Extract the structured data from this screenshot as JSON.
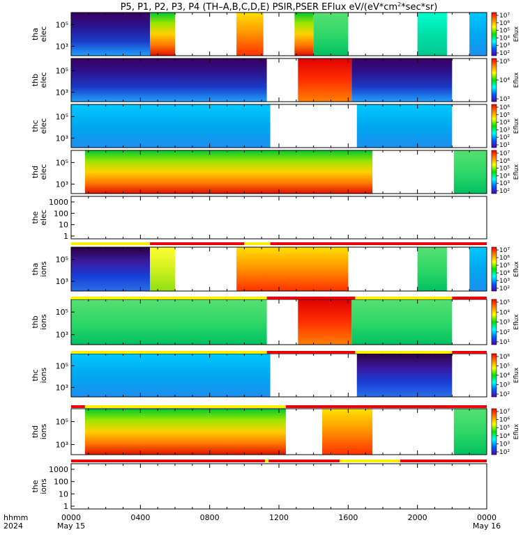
{
  "title": "P5, P1, P2, P3, P4 (TH–A,B,C,D,E) PSIR,PSER EFlux eV/(eV*cm",
  "title_sup": "2",
  "title_tail": "*sec*sr)",
  "x_axis": {
    "row1_label": "hhmm",
    "row2_label": "2024",
    "ticks": [
      "0000",
      "0400",
      "0800",
      "1200",
      "1600",
      "2000",
      "0000"
    ],
    "dates": [
      "May 15",
      "May 16"
    ],
    "range_hours": [
      0,
      24
    ]
  },
  "colors": {
    "ion_flag_red": "#e8000b",
    "ion_flag_yellow": "#ffee00",
    "background": "#ffffff"
  },
  "chart_data": {
    "type": "heatmap",
    "colorbar_label": "Eflux",
    "panels": [
      {
        "probe": "tha",
        "species": "elec",
        "yscale": "log",
        "yticks": [
          "10⁵",
          "10³"
        ],
        "colorbar_ticks": [
          "10⁷",
          "10⁶",
          "10⁵",
          "10⁴",
          "10³",
          "10²"
        ],
        "data_intervals_hours": [
          [
            0.0,
            4.55
          ],
          [
            4.55,
            6.0
          ],
          [
            9.55,
            11.1
          ],
          [
            12.9,
            14.0
          ],
          [
            14.0,
            16.0
          ],
          [
            20.0,
            21.7
          ],
          [
            23.0,
            24.0
          ]
        ]
      },
      {
        "probe": "thb",
        "species": "elec",
        "yscale": "log",
        "yticks": [
          "10⁵",
          "10³"
        ],
        "colorbar_ticks": [
          "10⁵",
          "10⁴",
          "10³"
        ],
        "data_intervals_hours": [
          [
            0.0,
            11.3
          ],
          [
            13.1,
            16.2
          ],
          [
            16.2,
            22.0
          ]
        ]
      },
      {
        "probe": "thc",
        "species": "elec",
        "yscale": "log",
        "yticks": [
          "10⁵",
          "10³"
        ],
        "colorbar_ticks": [
          "10⁶",
          "10⁵",
          "10⁴",
          "10³",
          "10²",
          "10¹"
        ],
        "data_intervals_hours": [
          [
            0.0,
            11.5
          ],
          [
            16.5,
            22.0
          ]
        ]
      },
      {
        "probe": "thd",
        "species": "elec",
        "yscale": "log",
        "yticks": [
          "10⁵",
          "10³"
        ],
        "colorbar_ticks": [
          "10⁷",
          "10⁶",
          "10⁵",
          "10⁴",
          "10³",
          "10²"
        ],
        "data_intervals_hours": [
          [
            0.8,
            17.4
          ],
          [
            22.1,
            24.0
          ]
        ]
      },
      {
        "probe": "the",
        "species": "elec",
        "yscale": "log",
        "yticks": [
          "1000",
          "100",
          "10",
          "1"
        ],
        "colorbar_ticks": [],
        "data_intervals_hours": []
      },
      {
        "probe": "tha",
        "species": "ions",
        "yscale": "log",
        "yticks": [
          "10⁵",
          "10³"
        ],
        "colorbar_ticks": [
          "10⁷",
          "10⁶",
          "10⁵",
          "10⁴",
          "10³",
          "10²"
        ],
        "data_intervals_hours": [
          [
            0.0,
            4.55
          ],
          [
            4.55,
            6.0
          ],
          [
            9.55,
            16.0
          ],
          [
            20.0,
            21.7
          ],
          [
            23.0,
            24.0
          ]
        ]
      },
      {
        "probe": "thb",
        "species": "ions",
        "yscale": "log",
        "yticks": [
          "10⁵",
          "10³"
        ],
        "colorbar_ticks": [
          "10⁵",
          "10⁴",
          "10³",
          "10²",
          "10¹"
        ],
        "data_intervals_hours": [
          [
            0.0,
            11.3
          ],
          [
            13.1,
            16.2
          ],
          [
            16.2,
            22.0
          ]
        ]
      },
      {
        "probe": "thc",
        "species": "ions",
        "yscale": "log",
        "yticks": [
          "10⁵",
          "10³"
        ],
        "colorbar_ticks": [
          "10⁶",
          "10⁵",
          "10⁴",
          "10³",
          "10²"
        ],
        "data_intervals_hours": [
          [
            0.0,
            11.5
          ],
          [
            16.5,
            22.0
          ]
        ]
      },
      {
        "probe": "thd",
        "species": "ions",
        "yscale": "log",
        "yticks": [
          "10⁵",
          "10³"
        ],
        "colorbar_ticks": [
          "10⁷",
          "10⁶",
          "10⁵",
          "10⁴",
          "10³",
          "10²"
        ],
        "data_intervals_hours": [
          [
            0.8,
            12.4
          ],
          [
            14.5,
            17.4
          ],
          [
            22.1,
            24.0
          ]
        ]
      },
      {
        "probe": "the",
        "species": "ions",
        "yscale": "log",
        "yticks": [
          "1000",
          "100",
          "10",
          "1"
        ],
        "colorbar_ticks": [],
        "data_intervals_hours": []
      }
    ],
    "flag_bars": [
      {
        "after_panel": 4,
        "segments": [
          [
            "yellow",
            0,
            4.55
          ],
          [
            "red",
            4.55,
            10.0
          ],
          [
            "yellow",
            10.0,
            11.5
          ],
          [
            "red",
            11.5,
            24.0
          ]
        ]
      },
      {
        "after_panel": 5,
        "segments": [
          [
            "yellow",
            0,
            11.3
          ],
          [
            "red",
            11.3,
            16.4
          ],
          [
            "yellow",
            16.4,
            22.0
          ],
          [
            "red",
            22.0,
            24.0
          ]
        ]
      },
      {
        "after_panel": 6,
        "segments": [
          [
            "yellow",
            0,
            11.3
          ],
          [
            "red",
            11.3,
            16.4
          ],
          [
            "yellow",
            16.4,
            22.0
          ],
          [
            "red",
            22.0,
            24.0
          ]
        ]
      },
      {
        "after_panel": 7,
        "segments": [
          [
            "red",
            0,
            0.8
          ],
          [
            "yellow",
            0.8,
            12.4
          ],
          [
            "red",
            12.4,
            24.0
          ]
        ]
      },
      {
        "after_panel": 8,
        "segments": [
          [
            "red",
            0,
            11.2
          ],
          [
            "yellow",
            11.2,
            11.4
          ],
          [
            "red",
            11.4,
            15.5
          ],
          [
            "yellow",
            15.5,
            19.0
          ],
          [
            "red",
            19.0,
            24.0
          ]
        ]
      }
    ]
  }
}
